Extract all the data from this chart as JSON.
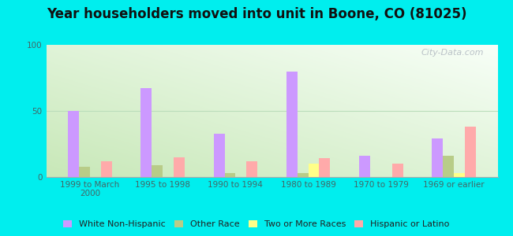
{
  "title": "Year householders moved into unit in Boone, CO (81025)",
  "categories": [
    "1999 to March\n2000",
    "1995 to 1998",
    "1990 to 1994",
    "1980 to 1989",
    "1970 to 1979",
    "1969 or earlier"
  ],
  "series": {
    "White Non-Hispanic": [
      50,
      67,
      33,
      80,
      16,
      29
    ],
    "Other Race": [
      8,
      9,
      3,
      3,
      0,
      16
    ],
    "Two or More Races": [
      0,
      0,
      0,
      10,
      0,
      3
    ],
    "Hispanic or Latino": [
      12,
      15,
      12,
      14,
      10,
      38
    ]
  },
  "colors": {
    "White Non-Hispanic": "#cc99ff",
    "Other Race": "#b8cc88",
    "Two or More Races": "#ffff88",
    "Hispanic or Latino": "#ffaaaa"
  },
  "ylim": [
    0,
    100
  ],
  "yticks": [
    0,
    50,
    100
  ],
  "outer_bg": "#00eeee",
  "plot_bg": "#f0fff0",
  "watermark": "City-Data.com",
  "bar_width": 0.15,
  "title_fontsize": 12,
  "tick_fontsize": 7.5,
  "legend_fontsize": 8
}
